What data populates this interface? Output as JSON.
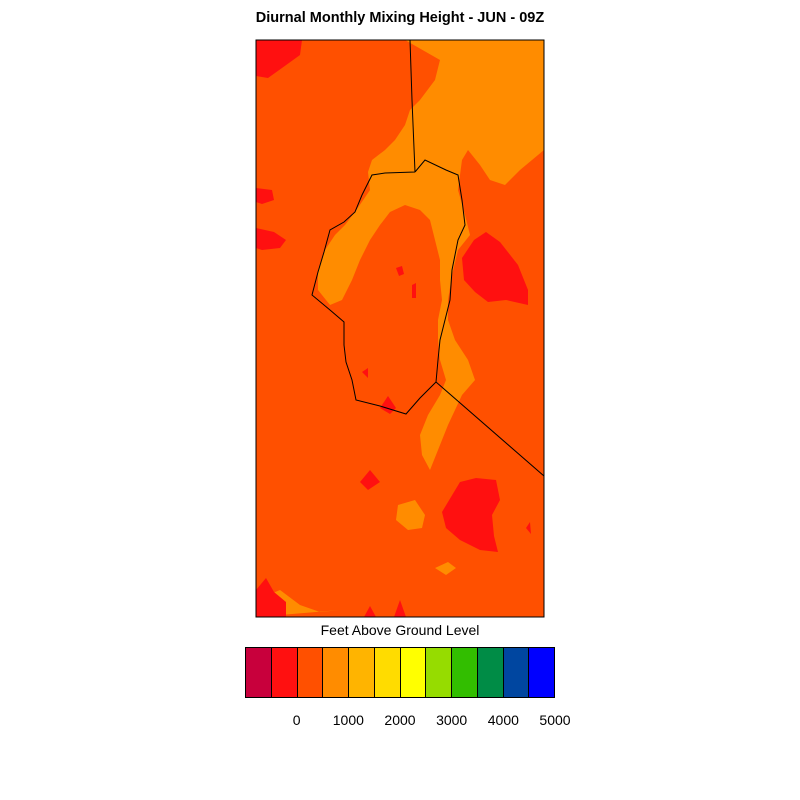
{
  "title": "Diurnal Monthly Mixing Height - JUN - 09Z",
  "legend": {
    "title": "Feet Above Ground Level",
    "colors": [
      "#c8003c",
      "#ff1010",
      "#ff5000",
      "#ff8c00",
      "#ffb400",
      "#ffdc00",
      "#ffff00",
      "#96dc00",
      "#32be00",
      "#008c46",
      "#0046a0",
      "#0000ff"
    ],
    "tick_labels": [
      "0",
      "1000",
      "2000",
      "3000",
      "4000",
      "5000"
    ]
  },
  "map": {
    "dominant_color": "#ff5000",
    "secondary_color": "#ff8c00",
    "minor_color": "#ff1010",
    "boundary_color": "#000000"
  }
}
